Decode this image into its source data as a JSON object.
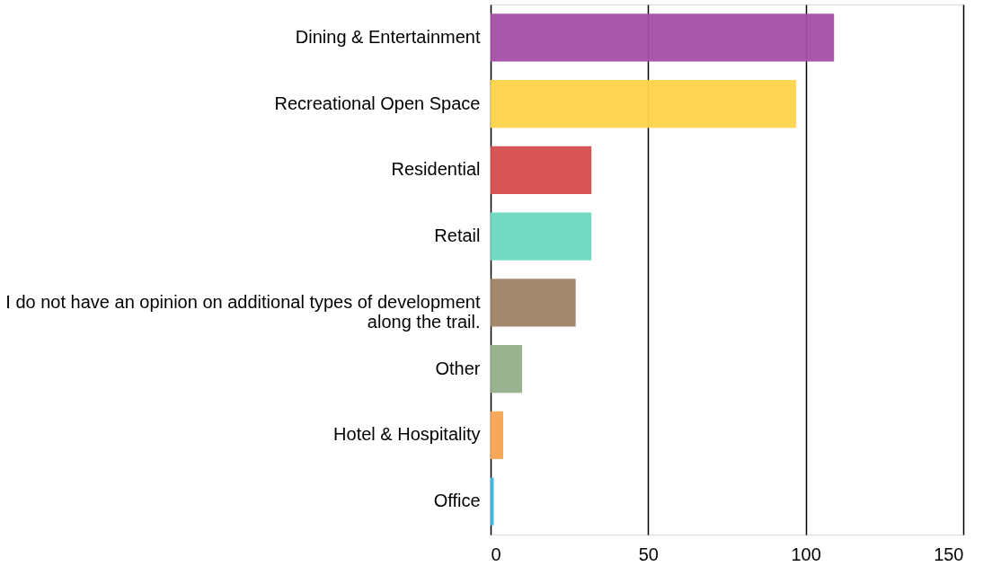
{
  "chart_data": {
    "type": "bar",
    "orientation": "horizontal",
    "categories": [
      "Dining & Entertainment",
      "Recreational Open Space",
      "Residential",
      "Retail",
      "I do not have an opinion on additional types of development\nalong the trail.",
      "Other",
      "Hotel & Hospitality",
      "Office"
    ],
    "values": [
      109,
      97,
      32,
      32,
      27,
      10,
      4,
      1
    ],
    "colors": [
      "#a44ea3",
      "#ffd44a",
      "#d64c4c",
      "#6dd9c0",
      "#a08366",
      "#94ae8a",
      "#f7a452",
      "#3bb6e0"
    ],
    "xlim": [
      0,
      150
    ],
    "xticks": [
      0,
      50,
      100,
      150
    ],
    "grid": "x"
  }
}
